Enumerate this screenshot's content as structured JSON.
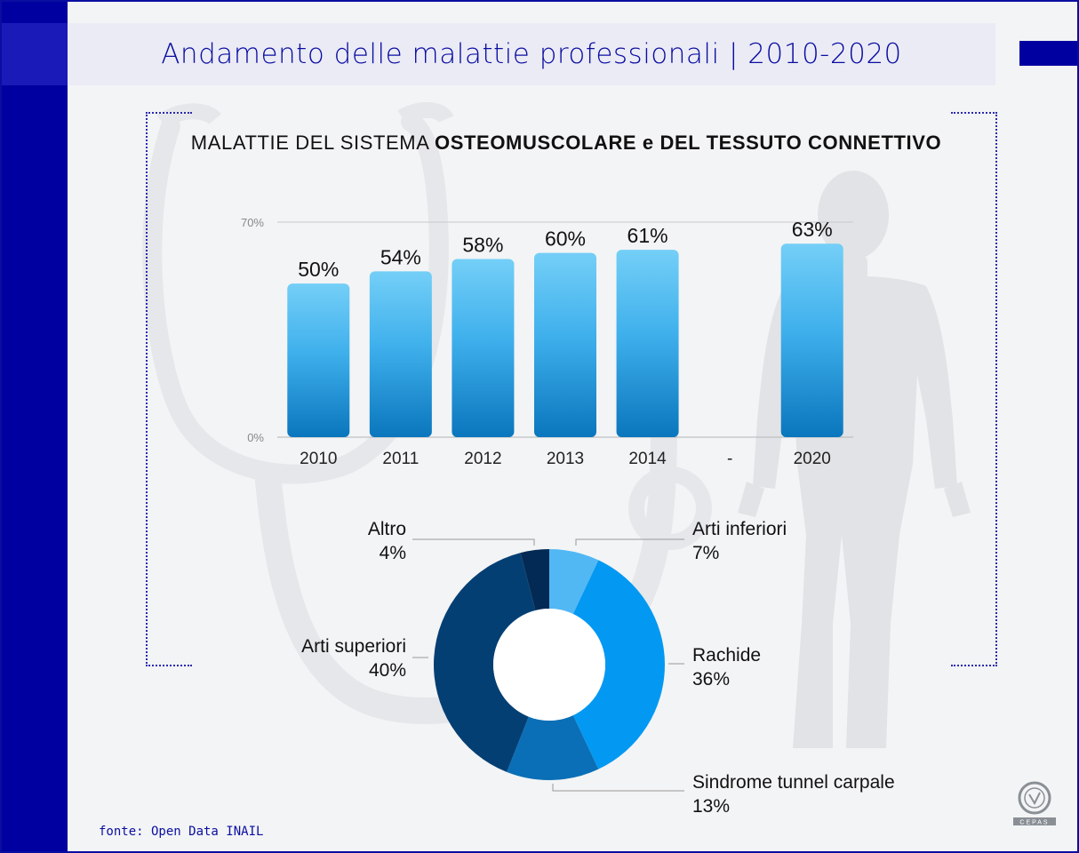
{
  "header": {
    "title": "Andamento delle malattie professionali | 2010-2020"
  },
  "chart_data": [
    {
      "type": "bar",
      "title": "",
      "subtitle_regular": "MALATTIE DEL SISTEMA",
      "subtitle_bold": "OSTEOMUSCOLARE e DEL TESSUTO CONNETTIVO",
      "categories": [
        "2010",
        "2011",
        "2012",
        "2013",
        "2014",
        "-",
        "2020"
      ],
      "values": [
        50,
        54,
        58,
        60,
        61,
        null,
        63
      ],
      "data_labels": [
        "50%",
        "54%",
        "58%",
        "60%",
        "61%",
        "",
        "63%"
      ],
      "y_ticks": [
        "0%",
        "70%"
      ],
      "ylim": [
        0,
        70
      ],
      "grid": true,
      "colors": {
        "bar_top": "#74cff7",
        "bar_bottom": "#0a76bd"
      }
    },
    {
      "type": "pie",
      "donut": true,
      "slices": [
        {
          "label": "Arti inferiori",
          "value_label": "7%",
          "value": 7,
          "color": "#52b8f4"
        },
        {
          "label": "Rachide",
          "value_label": "36%",
          "value": 36,
          "color": "#0399f2"
        },
        {
          "label": "Sindrome tunnel carpale",
          "value_label": "13%",
          "value": 13,
          "color": "#0a6fb6"
        },
        {
          "label": "Arti superiori",
          "value_label": "40%",
          "value": 40,
          "color": "#043f74"
        },
        {
          "label": "Altro",
          "value_label": "4%",
          "value": 4,
          "color": "#032a55"
        }
      ]
    }
  ],
  "footer": {
    "source": "fonte: Open Data INAIL"
  },
  "logo": {
    "name": "certification-seal",
    "text": "CEPAS"
  },
  "colors": {
    "brand": "#0000a0",
    "background": "#f3f4f5",
    "header_band": "#ebebf6"
  }
}
